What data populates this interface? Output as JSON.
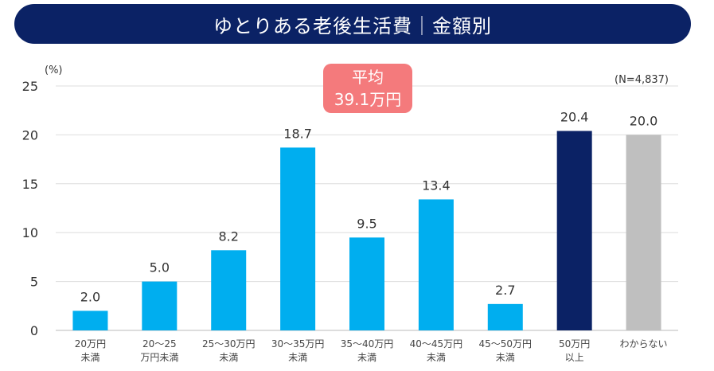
{
  "chart_data": {
    "type": "bar",
    "title": "ゆとりある老後生活費｜金額別",
    "ylabel": "(%)",
    "note": "(N=4,837)",
    "annotation": {
      "line1": "平均",
      "line2": "39.1万円"
    },
    "ylim": [
      0,
      25
    ],
    "yticks": [
      0,
      5,
      10,
      15,
      20,
      25
    ],
    "grid": true,
    "categories": [
      [
        "20万円",
        "未満"
      ],
      [
        "20～25",
        "万円未満"
      ],
      [
        "25～30万円",
        "未満"
      ],
      [
        "30～35万円",
        "未満"
      ],
      [
        "35～40万円",
        "未満"
      ],
      [
        "40～45万円",
        "未満"
      ],
      [
        "45～50万円",
        "未満"
      ],
      [
        "50万円",
        "以上"
      ],
      [
        "わからない",
        ""
      ]
    ],
    "values": [
      2.0,
      5.0,
      8.2,
      18.7,
      9.5,
      13.4,
      2.7,
      20.4,
      20.0
    ],
    "colors": [
      "#00aeef",
      "#00aeef",
      "#00aeef",
      "#00aeef",
      "#00aeef",
      "#00aeef",
      "#00aeef",
      "#0b2265",
      "#bfbfbf"
    ]
  }
}
